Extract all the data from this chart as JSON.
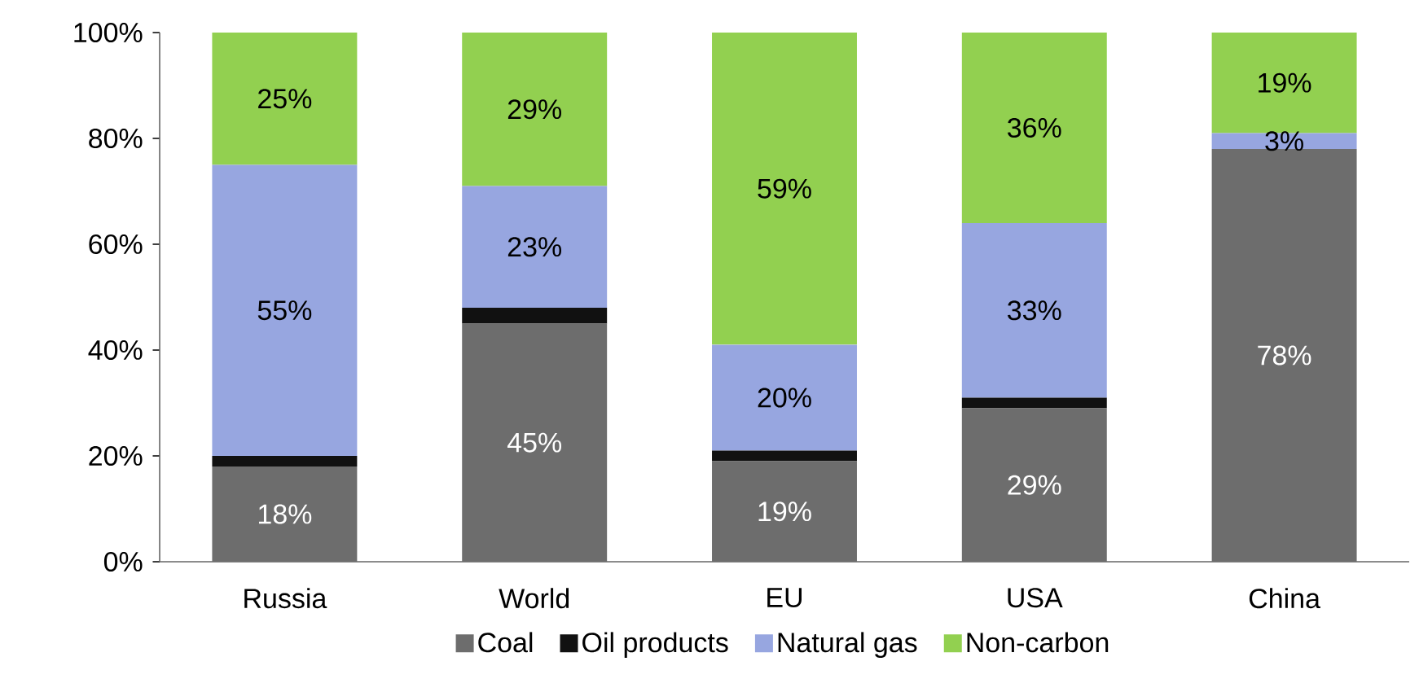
{
  "chart_data": {
    "type": "bar",
    "stacked": true,
    "categories": [
      "Russia",
      "World",
      "EU",
      "USA",
      "China"
    ],
    "series": [
      {
        "name": "Coal",
        "color": "#6d6d6d",
        "values": [
          18,
          45,
          19,
          29,
          78
        ],
        "value_labels": [
          "18%",
          "45%",
          "19%",
          "29%",
          "78%"
        ]
      },
      {
        "name": "Oil products",
        "color": "#111111",
        "values": [
          2,
          3,
          2,
          2,
          0
        ]
      },
      {
        "name": "Natural gas",
        "color": "#97a6e0",
        "values": [
          55,
          23,
          20,
          33,
          3
        ],
        "value_labels": [
          "55%",
          "23%",
          "20%",
          "33%",
          "3%"
        ]
      },
      {
        "name": "Non-carbon",
        "color": "#92d050",
        "values": [
          25,
          29,
          59,
          36,
          19
        ],
        "value_labels": [
          "25%",
          "29%",
          "59%",
          "36%",
          "19%"
        ]
      }
    ],
    "ylim": [
      0,
      100
    ],
    "yticks": [
      {
        "value": 0,
        "label": "0%"
      },
      {
        "value": 20,
        "label": "20%"
      },
      {
        "value": 40,
        "label": "40%"
      },
      {
        "value": 60,
        "label": "60%"
      },
      {
        "value": 80,
        "label": "80%"
      },
      {
        "value": 100,
        "label": "100%"
      }
    ],
    "legend": "bottom",
    "grid": false
  }
}
